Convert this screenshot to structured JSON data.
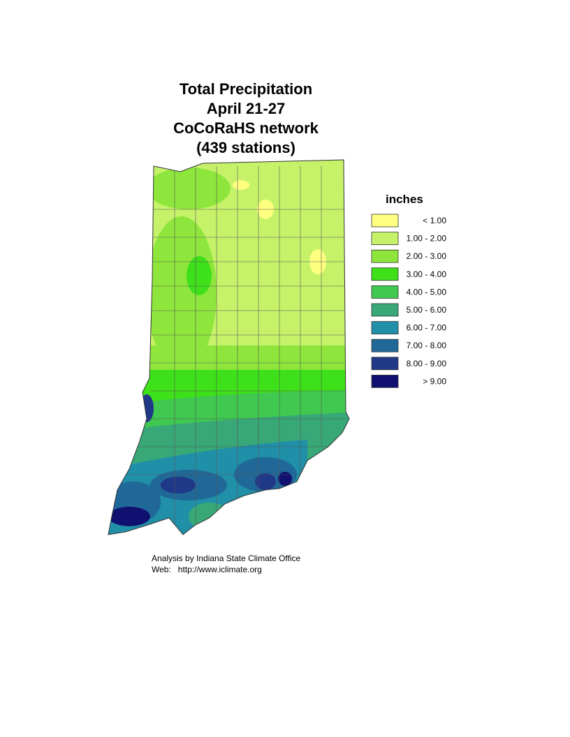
{
  "title": [
    "Total Precipitation",
    "April 21-27",
    "CoCoRaHS network",
    "(439 stations)"
  ],
  "legend": {
    "title": "inches",
    "items": [
      {
        "label": "< 1.00",
        "color": "#ffff80"
      },
      {
        "label": "1.00 - 2.00",
        "color": "#c6f26a"
      },
      {
        "label": "2.00 - 3.00",
        "color": "#8ee63c"
      },
      {
        "label": "3.00 - 4.00",
        "color": "#3ee01a"
      },
      {
        "label": "4.00 - 5.00",
        "color": "#40c850"
      },
      {
        "label": "5.00 - 6.00",
        "color": "#38a878"
      },
      {
        "label": "6.00 - 7.00",
        "color": "#2090a8"
      },
      {
        "label": "7.00 - 8.00",
        "color": "#206898"
      },
      {
        "label": "8.00 - 9.00",
        "color": "#203888"
      },
      {
        "label": "> 9.00",
        "color": "#101070"
      }
    ]
  },
  "credits": [
    "Analysis by Indiana State Climate Office",
    "Web:   http://www.iclimate.org"
  ]
}
